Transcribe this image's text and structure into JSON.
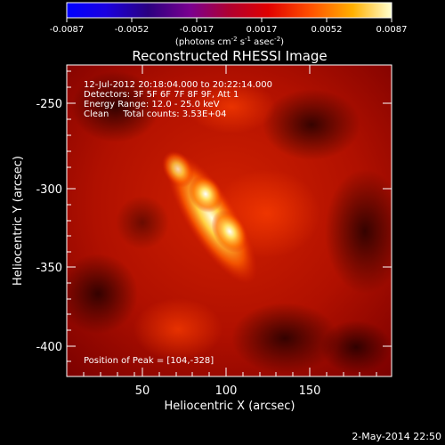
{
  "colorbar": {
    "tick_labels": [
      "-0.0087",
      "-0.0052",
      "-0.0017",
      "0.0017",
      "0.0052",
      "0.0087"
    ],
    "unit_label_parts": [
      "(photons cm",
      "-2",
      " s",
      "-1",
      " asec",
      "-2",
      ")"
    ]
  },
  "image": {
    "title": "Reconstructed RHESSI Image",
    "xlabel": "Heliocentric X (arcsec)",
    "ylabel": "Heliocentric Y (arcsec)",
    "x_ticks": [
      "50",
      "100",
      "150"
    ],
    "y_ticks": [
      "-250",
      "-300",
      "-350",
      "-400"
    ],
    "annotations": [
      "12-Jul-2012 20:18:04.000 to 20:22:14.000",
      "Detectors: 3F 5F 6F 7F 8F 9F, Att 1",
      "Energy Range: 12.0 - 25.0 keV",
      "Clean     Total counts: 3.53E+04"
    ],
    "peak_label": "Position of Peak = [104,-328]"
  },
  "footer": {
    "date": "2-May-2014 22:50"
  }
}
